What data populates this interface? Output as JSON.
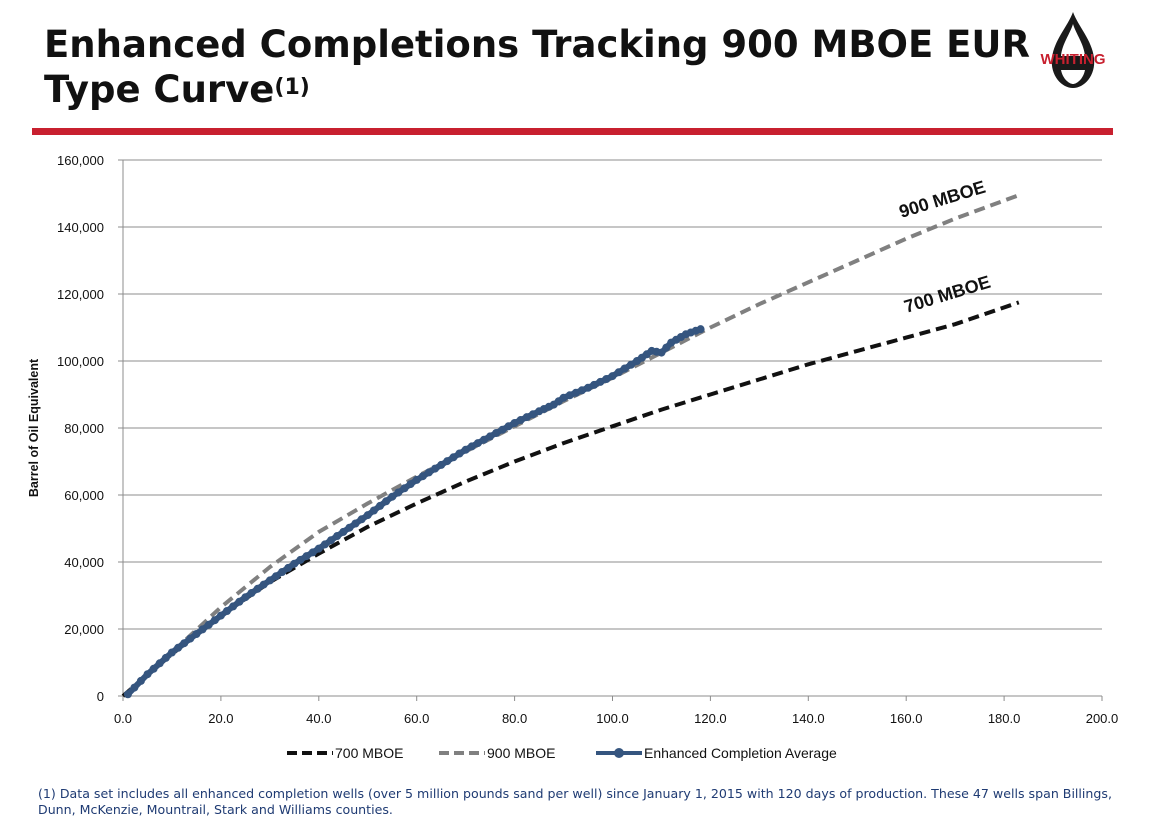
{
  "header": {
    "title_line1": "Enhanced Completions Tracking 900 MBOE EUR",
    "title_line2": "Type Curve",
    "title_ref": "(1)",
    "logo_text": "WHITING"
  },
  "colors": {
    "accent_red": "#c8202f",
    "series_700": "#111111",
    "series_900": "#808080",
    "series_enhanced": "#35557f",
    "footnote": "#1f3b73"
  },
  "chart_data": {
    "type": "line",
    "title": "",
    "xlabel": "",
    "ylabel": "Barrel of Oil Equivalent",
    "xlim": [
      0,
      200
    ],
    "ylim": [
      0,
      160000
    ],
    "x_ticks": [
      "0.0",
      "20.0",
      "40.0",
      "60.0",
      "80.0",
      "100.0",
      "120.0",
      "140.0",
      "160.0",
      "180.0",
      "200.0"
    ],
    "y_ticks": [
      "0",
      "20,000",
      "40,000",
      "60,000",
      "80,000",
      "100,000",
      "120,000",
      "140,000",
      "160,000"
    ],
    "grid": "horizontal",
    "legend_position": "bottom",
    "series": [
      {
        "name": "700 MBOE",
        "style": "dashed",
        "color": "#111111",
        "x": [
          0,
          10,
          20,
          30,
          40,
          50,
          60,
          70,
          80,
          90,
          100,
          110,
          120,
          130,
          140,
          150,
          160,
          170,
          183
        ],
        "y": [
          0,
          12500,
          24000,
          34000,
          42500,
          50500,
          57500,
          64000,
          70000,
          75500,
          80500,
          85500,
          90000,
          94500,
          99000,
          103000,
          107000,
          111000,
          117500
        ]
      },
      {
        "name": "900 MBOE",
        "style": "dashed",
        "color": "#808080",
        "x": [
          0,
          10,
          20,
          30,
          40,
          50,
          60,
          70,
          80,
          90,
          100,
          110,
          120,
          130,
          140,
          150,
          160,
          170,
          183
        ],
        "y": [
          0,
          13000,
          26500,
          38500,
          49000,
          57500,
          65500,
          73000,
          80500,
          88000,
          95000,
          102500,
          110000,
          117000,
          123500,
          130000,
          136500,
          142500,
          149500
        ]
      },
      {
        "name": "Enhanced Completion Average",
        "style": "solid-markers",
        "color": "#35557f",
        "x": [
          1,
          5,
          10,
          15,
          20,
          25,
          30,
          35,
          40,
          45,
          50,
          55,
          60,
          65,
          70,
          75,
          80,
          85,
          88,
          90,
          95,
          100,
          105,
          108,
          110,
          112,
          115,
          118
        ],
        "y": [
          500,
          6500,
          13000,
          18500,
          24000,
          29500,
          34500,
          39500,
          44000,
          49000,
          54000,
          59500,
          64500,
          69000,
          73500,
          77500,
          81500,
          85000,
          87000,
          89000,
          92000,
          95500,
          100000,
          103000,
          102500,
          105500,
          108000,
          109500
        ]
      }
    ],
    "annotations": [
      "900 MBOE",
      "700 MBOE"
    ]
  },
  "footnote": "(1) Data set includes all enhanced completion wells (over 5 million pounds sand per well) since January 1, 2015 with 120 days of production.  These 47 wells span Billings, Dunn, McKenzie, Mountrail, Stark and Williams counties."
}
